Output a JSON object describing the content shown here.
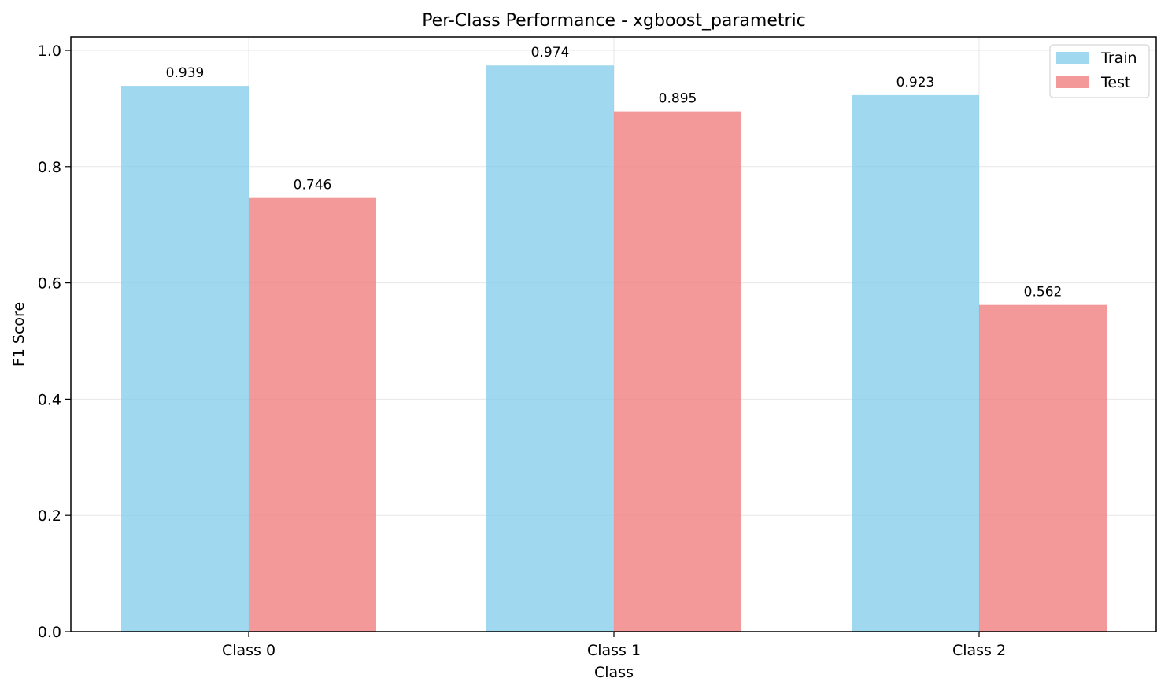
{
  "chart_data": {
    "type": "bar",
    "title": "Per-Class Performance - xgboost_parametric",
    "xlabel": "Class",
    "ylabel": "F1 Score",
    "categories": [
      "Class 0",
      "Class 1",
      "Class 2"
    ],
    "series": [
      {
        "name": "Train",
        "values": [
          0.939,
          0.974,
          0.923
        ],
        "labels": [
          "0.939",
          "0.974",
          "0.923"
        ],
        "color": "#87CEEB"
      },
      {
        "name": "Test",
        "values": [
          0.746,
          0.895,
          0.562
        ],
        "labels": [
          "0.746",
          "0.895",
          "0.562"
        ],
        "color": "#F08080"
      }
    ],
    "ylim": [
      0,
      1.023
    ],
    "yticks": [
      0.0,
      0.2,
      0.4,
      0.6,
      0.8,
      1.0
    ],
    "ytick_labels": [
      "0.0",
      "0.2",
      "0.4",
      "0.6",
      "0.8",
      "1.0"
    ],
    "grid": true,
    "legend": "top-right"
  }
}
